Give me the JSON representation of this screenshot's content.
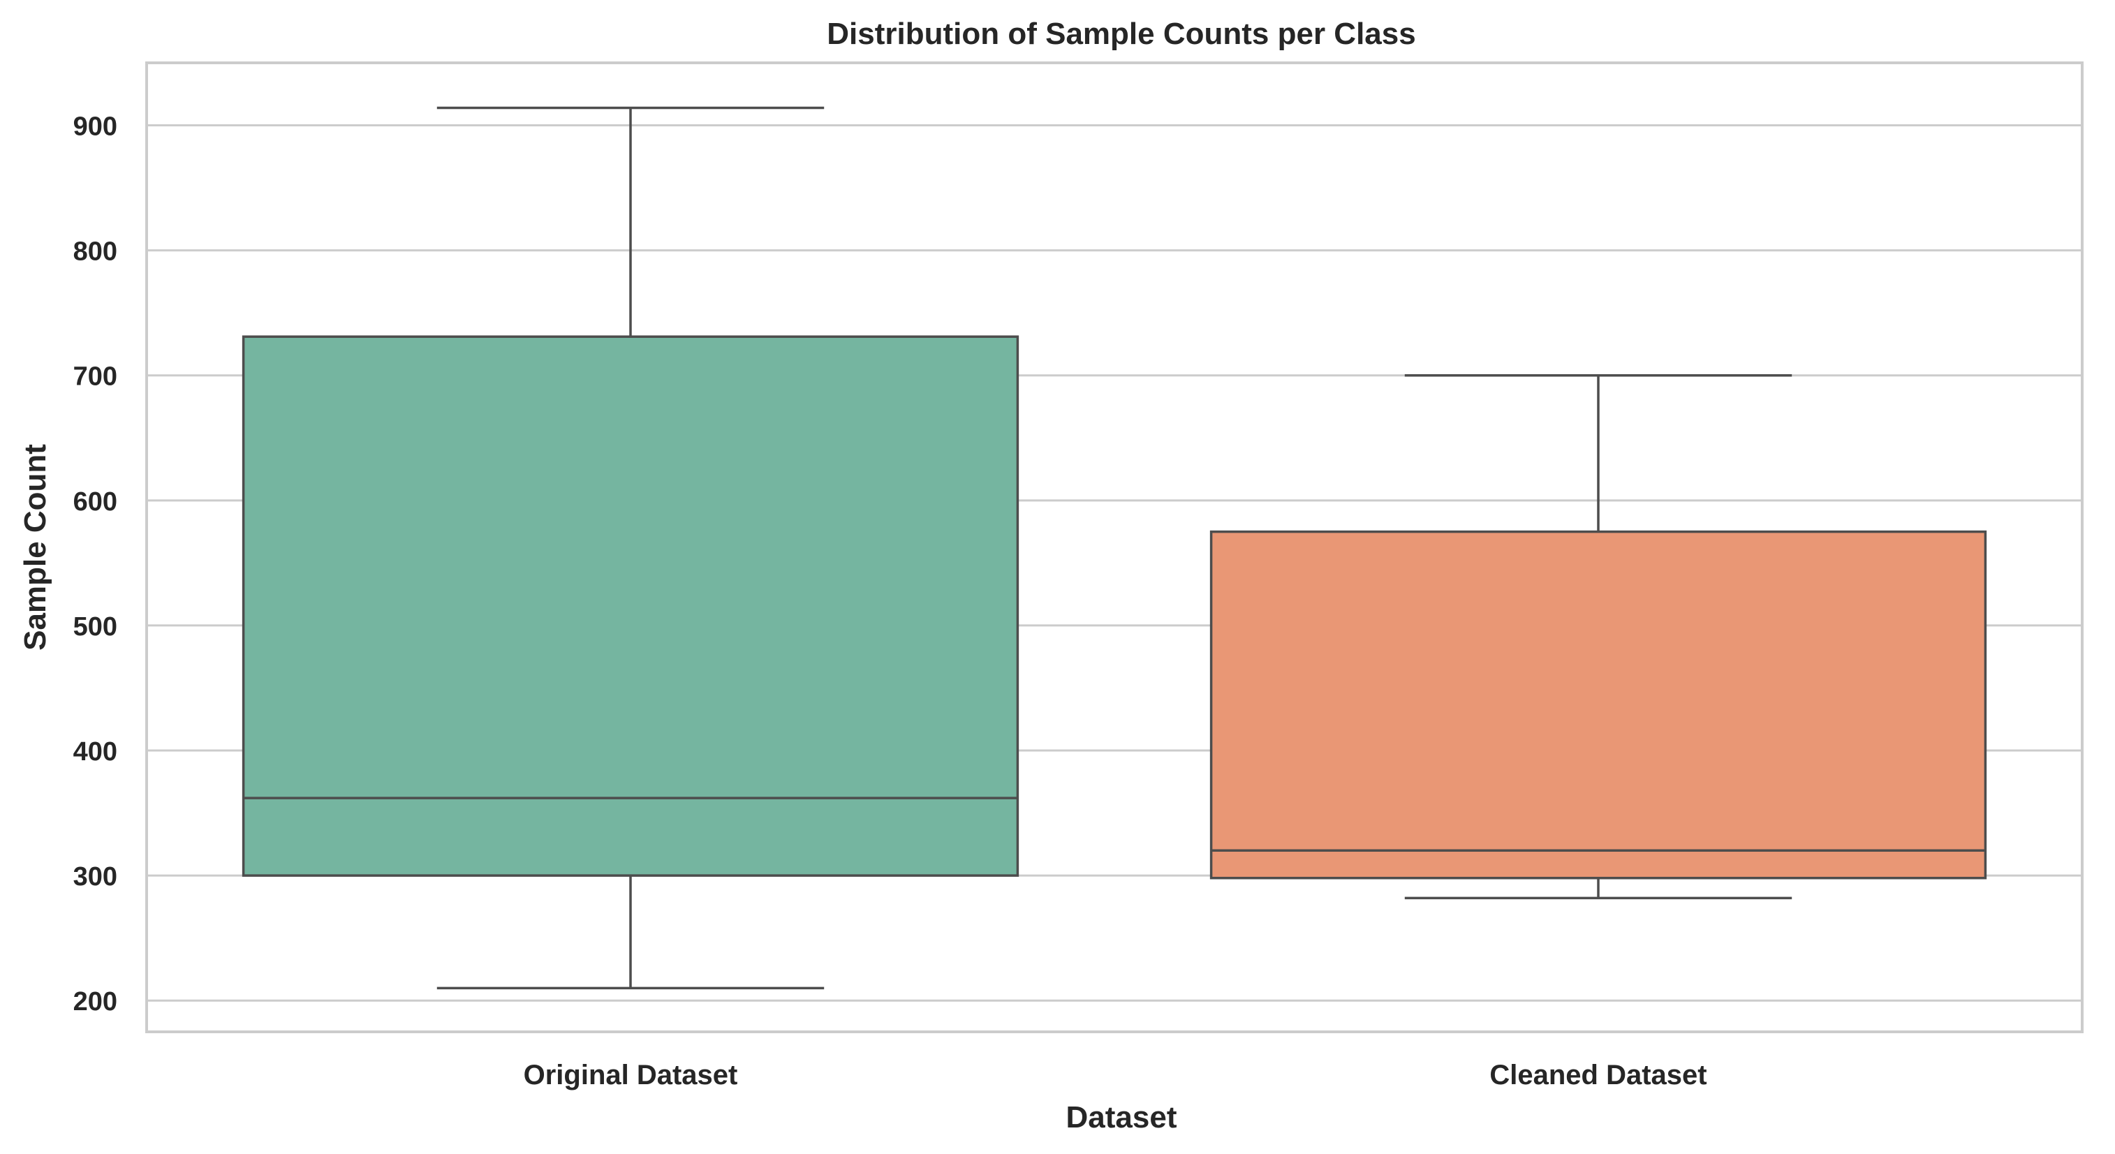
{
  "chart_data": {
    "type": "box",
    "title": "Distribution of Sample Counts per Class",
    "xlabel": "Dataset",
    "ylabel": "Sample Count",
    "ylim": [
      175,
      950
    ],
    "yticks": [
      200,
      300,
      400,
      500,
      600,
      700,
      800,
      900
    ],
    "grid": "horizontal",
    "categories": [
      "Original Dataset",
      "Cleaned Dataset"
    ],
    "boxes": [
      {
        "category": "Original Dataset",
        "whisker_low": 210,
        "q1": 300,
        "median": 362,
        "q3": 731,
        "whisker_high": 914,
        "color": "#75b5a0"
      },
      {
        "category": "Cleaned Dataset",
        "whisker_low": 282,
        "q1": 298,
        "median": 320,
        "q3": 575,
        "whisker_high": 700,
        "color": "#e99775"
      }
    ],
    "colors": {
      "frame": "#cccccc",
      "grid": "#cccccc",
      "box_edge": "#4d4d4d",
      "text": "#262626"
    }
  }
}
